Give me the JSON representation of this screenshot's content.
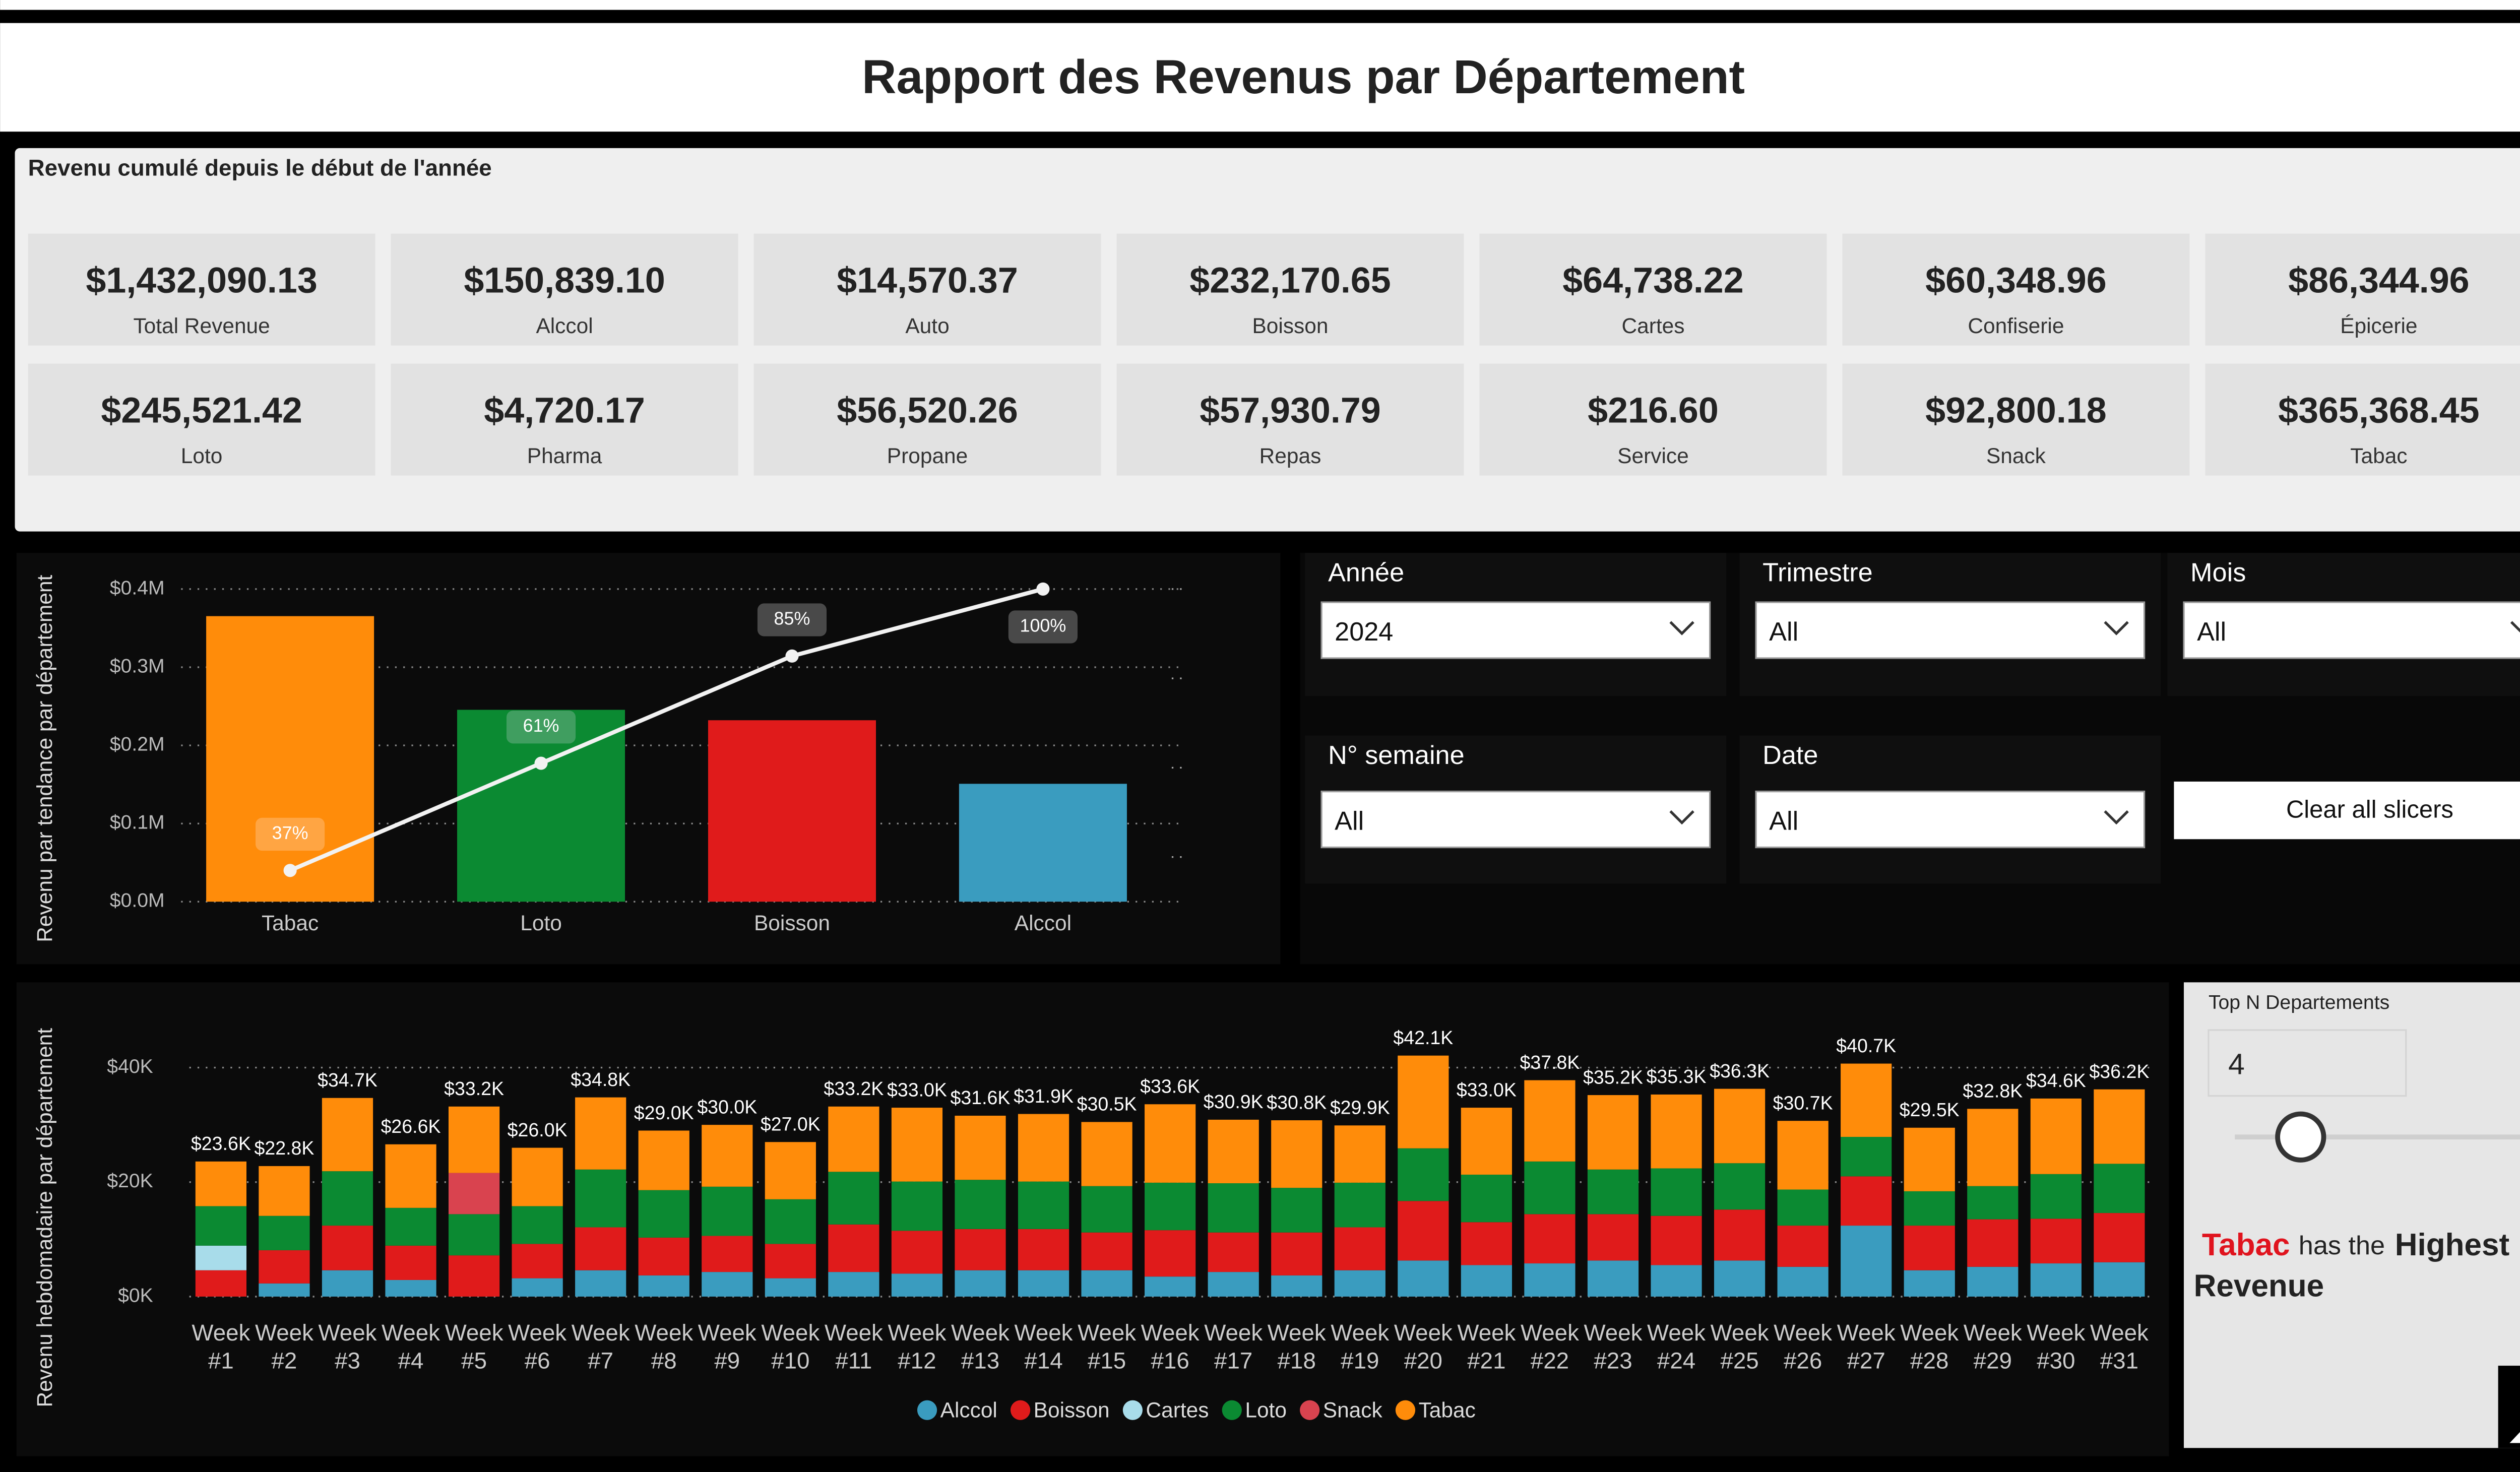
{
  "header": {
    "title": "Rapport des Revenus par Département"
  },
  "kpi_panel": {
    "title": "Revenu cumulé depuis le début de l'année",
    "cards": [
      {
        "value": "$1,432,090.13",
        "label": "Total Revenue"
      },
      {
        "value": "$150,839.10",
        "label": "Alccol"
      },
      {
        "value": "$14,570.37",
        "label": "Auto"
      },
      {
        "value": "$232,170.65",
        "label": "Boisson"
      },
      {
        "value": "$64,738.22",
        "label": "Cartes"
      },
      {
        "value": "$60,348.96",
        "label": "Confiserie"
      },
      {
        "value": "$86,344.96",
        "label": "Épicerie"
      },
      {
        "value": "$245,521.42",
        "label": "Loto"
      },
      {
        "value": "$4,720.17",
        "label": "Pharma"
      },
      {
        "value": "$56,520.26",
        "label": "Propane"
      },
      {
        "value": "$57,930.79",
        "label": "Repas"
      },
      {
        "value": "$216.60",
        "label": "Service"
      },
      {
        "value": "$92,800.18",
        "label": "Snack"
      },
      {
        "value": "$365,368.45",
        "label": "Tabac"
      }
    ]
  },
  "slicers": [
    {
      "title": "Année",
      "value": "2024"
    },
    {
      "title": "Trimestre",
      "value": "All"
    },
    {
      "title": "Mois",
      "value": "All"
    },
    {
      "title": "N° semaine",
      "value": "All"
    },
    {
      "title": "Date",
      "value": "All"
    }
  ],
  "clear_button": "Clear all slicers",
  "top_n": {
    "title": "Top N Departements",
    "value": "4"
  },
  "insight": {
    "leader": "Tabac",
    "middle": "has the",
    "emphasis": "Highest Revenue"
  },
  "chart_data": [
    {
      "type": "pareto",
      "y_label": "Revenu par tendance par département",
      "categories": [
        "Tabac",
        "Loto",
        "Boisson",
        "Alccol"
      ],
      "values": [
        365368.45,
        245521.42,
        232170.65,
        150839.1
      ],
      "colors": [
        "#ff8c0a",
        "#0b8a32",
        "#e01b1b",
        "#3a9cbf"
      ],
      "ylim": [
        0,
        400000
      ],
      "yticks": [
        {
          "value": 0,
          "label": "$0.0M"
        },
        {
          "value": 100000,
          "label": "$0.1M"
        },
        {
          "value": 200000,
          "label": "$0.2M"
        },
        {
          "value": 300000,
          "label": "$0.3M"
        },
        {
          "value": 400000,
          "label": "$0.4M"
        }
      ],
      "grid": true,
      "line": {
        "axis": "y2",
        "color": "#f2f2f2",
        "values": [
          37,
          61,
          85,
          100
        ],
        "value_labels": [
          "37%",
          "61%",
          "85%",
          "100%"
        ]
      },
      "y2lim": [
        30,
        100
      ],
      "y2ticks": [
        40,
        60,
        80,
        100
      ]
    },
    {
      "type": "stacked_bar",
      "y_label": "Revenu hebdomadaire par département",
      "categories": [
        "Week #1",
        "Week #2",
        "Week #3",
        "Week #4",
        "Week #5",
        "Week #6",
        "Week #7",
        "Week #8",
        "Week #9",
        "Week #10",
        "Week #11",
        "Week #12",
        "Week #13",
        "Week #14",
        "Week #15",
        "Week #16",
        "Week #17",
        "Week #18",
        "Week #19",
        "Week #20",
        "Week #21",
        "Week #22",
        "Week #23",
        "Week #24",
        "Week #25",
        "Week #26",
        "Week #27",
        "Week #28",
        "Week #29",
        "Week #30",
        "Week #31"
      ],
      "series": [
        {
          "name": "Alccol",
          "color": "#3a9cbf",
          "values": [
            null,
            2300,
            4600,
            2900,
            null,
            3200,
            4600,
            3700,
            4300,
            3200,
            4300,
            4000,
            4600,
            4600,
            4600,
            3500,
            4300,
            3700,
            4600,
            6300,
            5500,
            5800,
            6300,
            5500,
            6300,
            5200,
            12400,
            4600,
            5200,
            5800,
            6000
          ]
        },
        {
          "name": "Boisson",
          "color": "#e01b1b",
          "values": [
            4600,
            5800,
            7800,
            6000,
            7200,
            6000,
            7500,
            6600,
            6300,
            6000,
            8300,
            7500,
            7200,
            7200,
            6600,
            8100,
            6900,
            7500,
            7500,
            10400,
            7500,
            8600,
            8100,
            8600,
            8900,
            7200,
            8600,
            7800,
            8300,
            7800,
            8600
          ]
        },
        {
          "name": "Cartes",
          "color": "#a8dcea",
          "values": [
            4300,
            null,
            null,
            null,
            null,
            null,
            null,
            null,
            null,
            null,
            null,
            null,
            null,
            null,
            null,
            null,
            null,
            null,
            null,
            null,
            null,
            null,
            null,
            null,
            null,
            null,
            null,
            null,
            null,
            null,
            null
          ]
        },
        {
          "name": "Loto",
          "color": "#0b8a32",
          "values": [
            6900,
            6000,
            9500,
            6600,
            7200,
            6600,
            10100,
            8300,
            8600,
            7800,
            9200,
            8600,
            8600,
            8300,
            8100,
            8300,
            8600,
            7800,
            7800,
            9200,
            8300,
            9200,
            7800,
            8300,
            8100,
            6300,
            6900,
            6000,
            5800,
            7800,
            8600
          ]
        },
        {
          "name": "Snack",
          "color": "#d9434f",
          "values": [
            null,
            null,
            null,
            null,
            7200,
            null,
            null,
            null,
            null,
            null,
            null,
            null,
            null,
            null,
            null,
            null,
            null,
            null,
            null,
            null,
            null,
            null,
            null,
            null,
            null,
            null,
            null,
            null,
            null,
            null,
            null
          ]
        },
        {
          "name": "Tabac",
          "color": "#ff8c0a",
          "values": [
            7800,
            8700,
            12800,
            11100,
            11600,
            10200,
            12600,
            10400,
            10800,
            10000,
            11400,
            12900,
            11200,
            11800,
            11200,
            13700,
            11100,
            11800,
            10000,
            16200,
            11700,
            14200,
            13000,
            12900,
            13000,
            12000,
            12800,
            11100,
            13500,
            13200,
            13000
          ]
        }
      ],
      "totals": [
        23600,
        22800,
        34700,
        26600,
        33200,
        26000,
        34800,
        29000,
        30000,
        27000,
        33200,
        33000,
        31600,
        31900,
        30500,
        33600,
        30900,
        30800,
        29900,
        42100,
        33000,
        37800,
        35200,
        35300,
        36300,
        30700,
        40700,
        29500,
        32800,
        34600,
        36200
      ],
      "total_labels": [
        "$23.6K",
        "$22.8K",
        "$34.7K",
        "$26.6K",
        "$33.2K",
        "$26.0K",
        "$34.8K",
        "$29.0K",
        "$30.0K",
        "$27.0K",
        "$33.2K",
        "$33.0K",
        "$31.6K",
        "$31.9K",
        "$30.5K",
        "$33.6K",
        "$30.9K",
        "$30.8K",
        "$29.9K",
        "$42.1K",
        "$33.0K",
        "$37.8K",
        "$35.2K",
        "$35.3K",
        "$36.3K",
        "$30.7K",
        "$40.7K",
        "$29.5K",
        "$32.8K",
        "$34.6K",
        "$36.2K"
      ],
      "ylim": [
        0,
        48000
      ],
      "yticks": [
        {
          "value": 0,
          "label": "$0K"
        },
        {
          "value": 20000,
          "label": "$20K"
        },
        {
          "value": 40000,
          "label": "$40K"
        }
      ],
      "grid": true,
      "legend": "bottom"
    }
  ]
}
